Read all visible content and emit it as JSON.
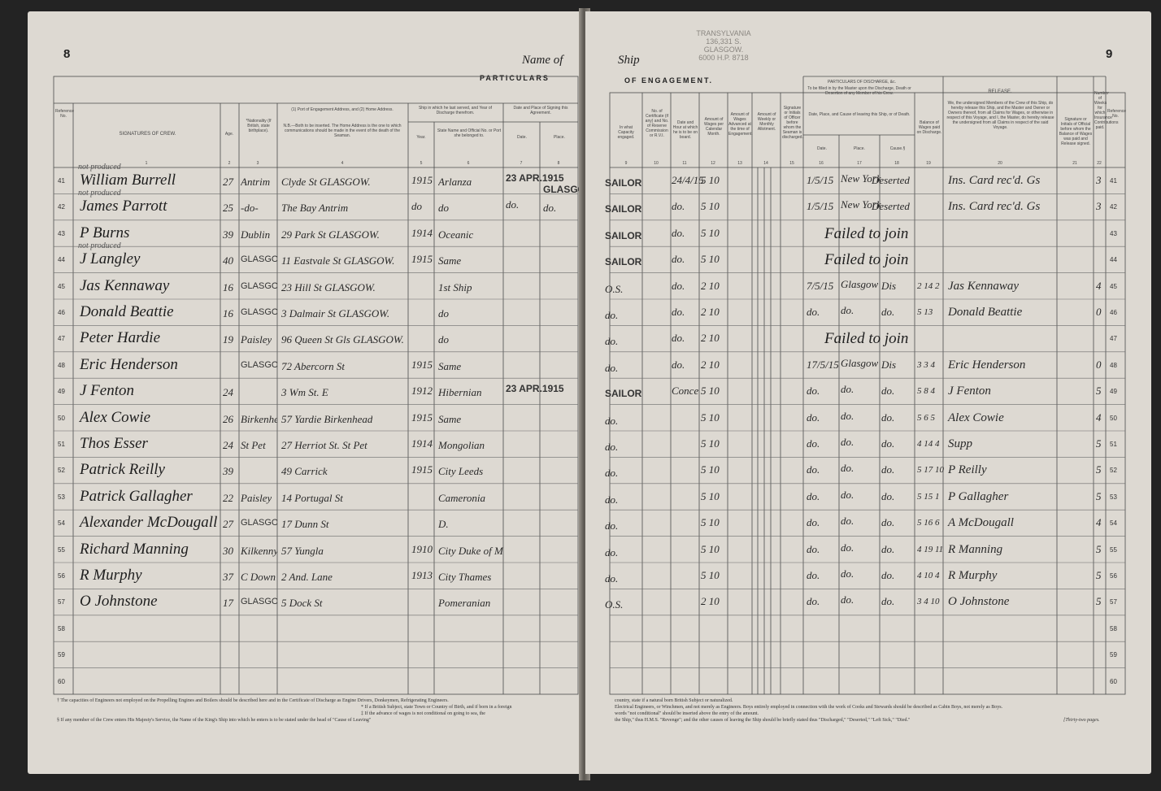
{
  "left": {
    "page_number": "8",
    "name_of": "Name of",
    "section": "PARTICULARS",
    "headers": {
      "ref_no": "Reference No.",
      "signatures": "SIGNATURES OF CREW.",
      "age": "Age.",
      "nationality": "*Nationality (If British, state birthplace).",
      "address": "(1) Port of Engagement Address, and (2) Home Address.",
      "address_note": "N.B.—Both to be inserted. The Home Address is the one to which communications should be made in the event of the death of the Seaman.",
      "last_ship": "Ship in which he last served, and Year of Discharge therefrom.",
      "year": "Year.",
      "state_name": "State Name and Official No. or Port she belonged to.",
      "date_place": "Date and Place of Signing this Agreement.",
      "date": "Date.",
      "place": "Place."
    },
    "col_numbers": [
      "1",
      "2",
      "3",
      "4",
      "5",
      "6",
      "7",
      "8"
    ],
    "rows": [
      {
        "ref": "41",
        "name": "William Burrell",
        "age": "27",
        "nat": "Antrim",
        "addr": "Clyde St GLASGOW.",
        "year": "1915",
        "ship": "Arlanza",
        "date": "23 APR.1915",
        "place": "GLASGOW",
        "note": "not produced"
      },
      {
        "ref": "42",
        "name": "James Parrott",
        "age": "25",
        "nat": "-do-",
        "addr": "The Bay Antrim",
        "year": "do",
        "ship": "do",
        "date": "do.",
        "place": "do.",
        "note": "not produced"
      },
      {
        "ref": "43",
        "name": "P Burns",
        "age": "39",
        "nat": "Dublin",
        "addr": "29 Park St GLASGOW.",
        "year": "1914",
        "ship": "Oceanic",
        "date": "",
        "place": "",
        "note": ""
      },
      {
        "ref": "44",
        "name": "J Langley",
        "age": "40",
        "nat": "GLASGOW.",
        "addr": "11 Eastvale St GLASGOW.",
        "year": "1915",
        "ship": "Same",
        "date": "",
        "place": "",
        "note": "not produced"
      },
      {
        "ref": "45",
        "name": "Jas Kennaway",
        "age": "16",
        "nat": "GLASGOW.",
        "addr": "23 Hill St GLASGOW.",
        "year": "",
        "ship": "1st Ship",
        "date": "",
        "place": "",
        "note": ""
      },
      {
        "ref": "46",
        "name": "Donald Beattie",
        "age": "16",
        "nat": "GLASGOW.",
        "addr": "3 Dalmair St GLASGOW.",
        "year": "",
        "ship": "do",
        "date": "",
        "place": "",
        "note": ""
      },
      {
        "ref": "47",
        "name": "Peter Hardie",
        "age": "19",
        "nat": "Paisley",
        "addr": "96 Queen St Gls GLASGOW.",
        "year": "",
        "ship": "do",
        "date": "",
        "place": "",
        "note": ""
      },
      {
        "ref": "48",
        "name": "Eric Henderson",
        "age": "",
        "nat": "GLASGOW.",
        "addr": "72 Abercorn St",
        "year": "1915",
        "ship": "Same",
        "date": "",
        "place": "",
        "note": ""
      },
      {
        "ref": "49",
        "name": "J Fenton",
        "age": "24",
        "nat": "",
        "addr": "3 Wm St. E",
        "year": "1912",
        "ship": "Hibernian",
        "date": "23 APR.1915",
        "place": "",
        "note": ""
      },
      {
        "ref": "50",
        "name": "Alex Cowie",
        "age": "26",
        "nat": "Birkenhead",
        "addr": "57 Yardie Birkenhead",
        "year": "1915",
        "ship": "Same",
        "date": "",
        "place": "",
        "note": ""
      },
      {
        "ref": "51",
        "name": "Thos Esser",
        "age": "24",
        "nat": "St Pet",
        "addr": "27 Herriot St. St Pet",
        "year": "1914",
        "ship": "Mongolian",
        "date": "",
        "place": "",
        "note": ""
      },
      {
        "ref": "52",
        "name": "Patrick Reilly",
        "age": "39",
        "nat": "",
        "addr": "49 Carrick",
        "year": "1915",
        "ship": "City Leeds",
        "date": "",
        "place": "",
        "note": ""
      },
      {
        "ref": "53",
        "name": "Patrick Gallagher",
        "age": "22",
        "nat": "Paisley",
        "addr": "14 Portugal St",
        "year": "",
        "ship": "Cameronia",
        "date": "",
        "place": "",
        "note": ""
      },
      {
        "ref": "54",
        "name": "Alexander McDougall",
        "age": "27",
        "nat": "GLASGOW",
        "addr": "17 Dunn St",
        "year": "",
        "ship": "D.",
        "date": "",
        "place": "",
        "note": ""
      },
      {
        "ref": "55",
        "name": "Richard Manning",
        "age": "30",
        "nat": "Kilkenny",
        "addr": "57 Yungla",
        "year": "1910",
        "ship": "City Duke of Montrose",
        "date": "",
        "place": "",
        "note": ""
      },
      {
        "ref": "56",
        "name": "R Murphy",
        "age": "37",
        "nat": "C Down",
        "addr": "2 And. Lane",
        "year": "1913",
        "ship": "City Thames",
        "date": "",
        "place": "",
        "note": ""
      },
      {
        "ref": "57",
        "name": "O Johnstone",
        "age": "17",
        "nat": "GLASGOW",
        "addr": "5 Dock St",
        "year": "",
        "ship": "Pomeranian",
        "date": "",
        "place": "",
        "note": ""
      },
      {
        "ref": "58",
        "name": "",
        "age": "",
        "nat": "",
        "addr": "",
        "year": "",
        "ship": "",
        "date": "",
        "place": "",
        "note": ""
      },
      {
        "ref": "59",
        "name": "",
        "age": "",
        "nat": "",
        "addr": "",
        "year": "",
        "ship": "",
        "date": "",
        "place": "",
        "note": ""
      },
      {
        "ref": "60",
        "name": "",
        "age": "",
        "nat": "",
        "addr": "",
        "year": "",
        "ship": "",
        "date": "",
        "place": "",
        "note": ""
      }
    ],
    "footnotes": [
      "† The capacities of Engineers not employed on the Propelling Engines and Boilers should be described here and in the Certificate of Discharge as Engine Drivers, Donkeymen, Refrigerating Engineers.",
      "* If a British Subject, state Town or Country of Birth, and if born in a foreign",
      "‡ If the advance of wages is not conditional on going to sea, the",
      "§ If any member of the Crew enters His Majesty's Service, the Name of the King's Ship into which he enters is to be stated under the head of \"Cause of Leaving\""
    ]
  },
  "right": {
    "page_number": "9",
    "ship": "Ship",
    "stamp": [
      "TRANSYLVANIA",
      "136,331 S.",
      "GLASGOW.",
      "6000 H.P. 8718"
    ],
    "section": "OF ENGAGEMENT.",
    "discharge_section": "PARTICULARS OF DISCHARGE, &c.",
    "discharge_note": "To be filled in by the Master upon the Discharge, Death or Desertion of any Member of his Crew.",
    "release_header": "RELEASE.",
    "release_text": "We, the undersigned Members of the Crew of this Ship, do hereby release this Ship, and the Master and Owner or Owners thereof, from all Claims for Wages, or otherwise in respect of this Voyage, and I, the Master, do hereby release the undersigned from all Claims in respect of the said Voyage.",
    "headers": {
      "capacity": "In what Capacity engaged.",
      "cert": "No. of Certificate (if any) and No. of Reserve Commission or R.V.I.",
      "date_hour": "Date and Hour at which he is to be on board.",
      "wages": "Amount of Wages per Calendar Month.",
      "advance": "Amount of Wages Advanced at the time of Engagement.",
      "allotment": "Amount of Weekly or Monthly Allotment.",
      "initials": "Signature or Initials of Officer before whom the Seaman is discharged.",
      "date_place_cause": "Date, Place, and Cause of leaving this Ship, or of Death.",
      "date": "Date.",
      "place": "Place.",
      "cause": "Cause.§",
      "balance": "Balance of Wages paid on Discharge.",
      "sig_official": "Signature or Initials of Official before whom the Balance of Wages was paid and Release signed.",
      "weeks": "Number of Weeks for which Insurance Contributions paid.",
      "ref_no": "Reference No."
    },
    "col_numbers": [
      "9",
      "10",
      "11",
      "12",
      "13",
      "14",
      "15",
      "16",
      "17",
      "18",
      "19",
      "20",
      "21",
      "22"
    ],
    "rows": [
      {
        "ref": "41",
        "capacity": "SAILOR",
        "hour": "24/4/15",
        "wages": "5 10",
        "date": "1/5/15",
        "place": "New York",
        "cause": "Deserted",
        "balance": "",
        "release": "Ins. Card rec'd. Gs",
        "weeks": "3"
      },
      {
        "ref": "42",
        "capacity": "SAILOR",
        "hour": "do.",
        "wages": "5 10",
        "date": "1/5/15",
        "place": "New York",
        "cause": "Deserted",
        "balance": "",
        "release": "Ins. Card rec'd. Gs",
        "weeks": "3"
      },
      {
        "ref": "43",
        "capacity": "SAILOR",
        "hour": "do.",
        "wages": "5 10",
        "date": "",
        "place": "Failed to join",
        "cause": "",
        "balance": "",
        "release": "",
        "weeks": ""
      },
      {
        "ref": "44",
        "capacity": "SAILOR",
        "hour": "do.",
        "wages": "5 10",
        "date": "",
        "place": "Failed to join",
        "cause": "",
        "balance": "",
        "release": "",
        "weeks": ""
      },
      {
        "ref": "45",
        "capacity": "O.S.",
        "hour": "do.",
        "wages": "2 10",
        "date": "7/5/15",
        "place": "Glasgow",
        "cause": "Dis",
        "balance": "2 14 2",
        "release": "Jas Kennaway",
        "weeks": "4"
      },
      {
        "ref": "46",
        "capacity": "do.",
        "hour": "do.",
        "wages": "2 10",
        "date": "do.",
        "place": "do.",
        "cause": "do.",
        "balance": "5 13",
        "release": "Donald Beattie",
        "weeks": "0"
      },
      {
        "ref": "47",
        "capacity": "do.",
        "hour": "do.",
        "wages": "2 10",
        "date": "",
        "place": "Failed to join",
        "cause": "",
        "balance": "",
        "release": "",
        "weeks": ""
      },
      {
        "ref": "48",
        "capacity": "do.",
        "hour": "do.",
        "wages": "2 10",
        "date": "17/5/15",
        "place": "Glasgow",
        "cause": "Dis",
        "balance": "3 3 4",
        "release": "Eric Henderson",
        "weeks": "0"
      },
      {
        "ref": "49",
        "capacity": "SAILOR",
        "hour": "Conce",
        "wages": "5 10",
        "date": "do.",
        "place": "do.",
        "cause": "do.",
        "balance": "5 8 4",
        "release": "J Fenton",
        "weeks": "5"
      },
      {
        "ref": "50",
        "capacity": "do.",
        "hour": "",
        "wages": "5 10",
        "date": "do.",
        "place": "do.",
        "cause": "do.",
        "balance": "5 6 5",
        "release": "Alex Cowie",
        "weeks": "4"
      },
      {
        "ref": "51",
        "capacity": "do.",
        "hour": "",
        "wages": "5 10",
        "date": "do.",
        "place": "do.",
        "cause": "do.",
        "balance": "4 14 4",
        "release": "Supp",
        "weeks": "5"
      },
      {
        "ref": "52",
        "capacity": "do.",
        "hour": "",
        "wages": "5 10",
        "date": "do.",
        "place": "do.",
        "cause": "do.",
        "balance": "5 17 10",
        "release": "P Reilly",
        "weeks": "5"
      },
      {
        "ref": "53",
        "capacity": "do.",
        "hour": "",
        "wages": "5 10",
        "date": "do.",
        "place": "do.",
        "cause": "do.",
        "balance": "5 15 1",
        "release": "P Gallagher",
        "weeks": "5"
      },
      {
        "ref": "54",
        "capacity": "do.",
        "hour": "",
        "wages": "5 10",
        "date": "do.",
        "place": "do.",
        "cause": "do.",
        "balance": "5 16 6",
        "release": "A McDougall",
        "weeks": "4"
      },
      {
        "ref": "55",
        "capacity": "do.",
        "hour": "",
        "wages": "5 10",
        "date": "do.",
        "place": "do.",
        "cause": "do.",
        "balance": "4 19 11",
        "release": "R Manning",
        "weeks": "5"
      },
      {
        "ref": "56",
        "capacity": "do.",
        "hour": "",
        "wages": "5 10",
        "date": "do.",
        "place": "do.",
        "cause": "do.",
        "balance": "4 10 4",
        "release": "R Murphy",
        "weeks": "5"
      },
      {
        "ref": "57",
        "capacity": "O.S.",
        "hour": "",
        "wages": "2 10",
        "date": "do.",
        "place": "do.",
        "cause": "do.",
        "balance": "3 4 10",
        "release": "O Johnstone",
        "weeks": "5"
      },
      {
        "ref": "58",
        "capacity": "",
        "hour": "",
        "wages": "",
        "date": "",
        "place": "",
        "cause": "",
        "balance": "",
        "release": "",
        "weeks": ""
      },
      {
        "ref": "59",
        "capacity": "",
        "hour": "",
        "wages": "",
        "date": "",
        "place": "",
        "cause": "",
        "balance": "",
        "release": "",
        "weeks": ""
      },
      {
        "ref": "60",
        "capacity": "",
        "hour": "",
        "wages": "",
        "date": "",
        "place": "",
        "cause": "",
        "balance": "",
        "release": "",
        "weeks": ""
      }
    ],
    "footnotes": [
      "country, state if a natural born British Subject or naturalized.",
      "Electrical Engineers, or Winchmen, and not merely as Engineers. Boys entirely employed in connection with the work of Cooks and Stewards should be described as Cabin Boys, not merely as Boys.",
      "words \"not conditional\" should be inserted above the entry of the amount.",
      "the Ship,\" thus H.M.S. \"Revenge\"; and the other causes of leaving the Ship should be briefly stated thus \"Discharged,\" \"Deserted,\" \"Left Sick,\" \"Died.\""
    ],
    "pages_note": "[Thirty-two pages."
  }
}
